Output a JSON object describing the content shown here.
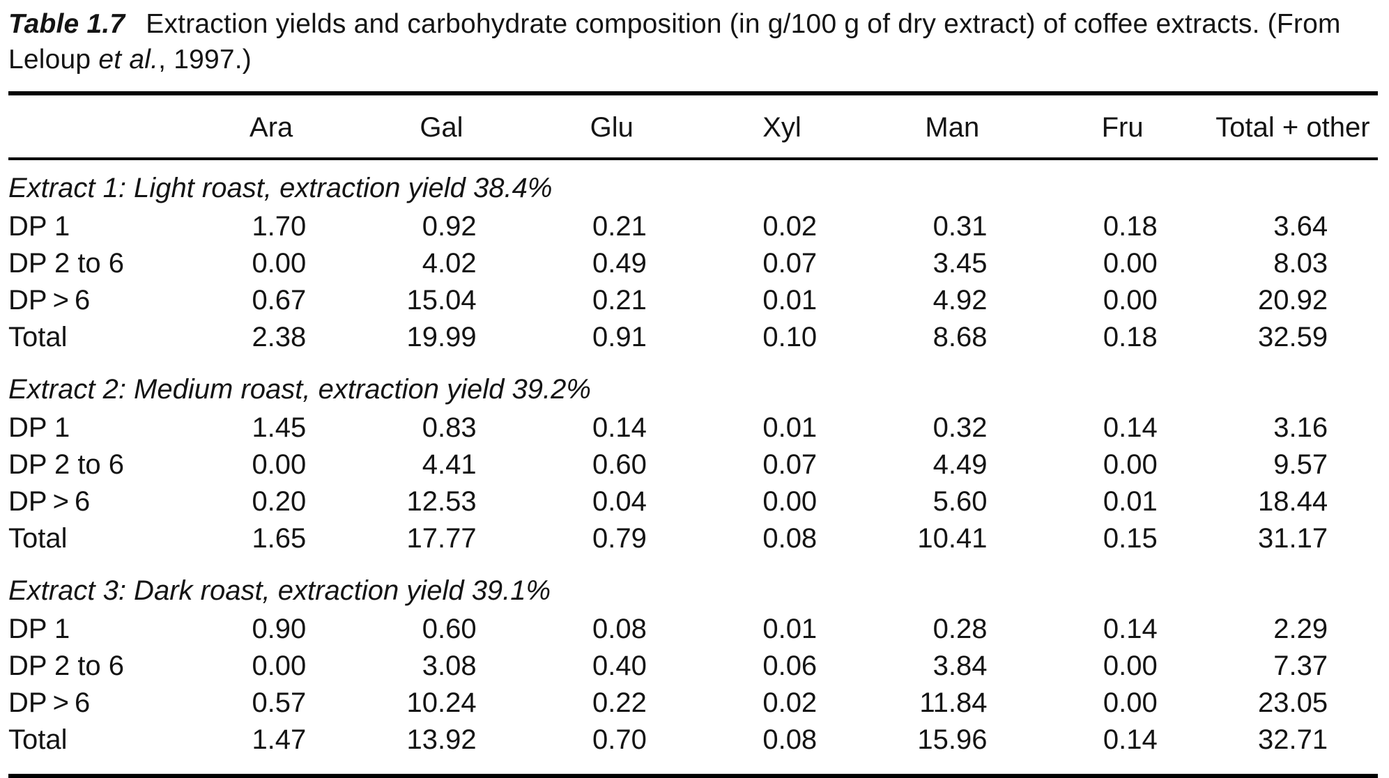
{
  "caption": {
    "label": "Table 1.7",
    "line1": "Extraction yields and carbohydrate composition (in g/100 g of dry extract) of coffee extracts. (From",
    "line2_pre": "Leloup ",
    "line2_italic": "et al.",
    "line2_post": ", 1997.)"
  },
  "table": {
    "columns": [
      "Ara",
      "Gal",
      "Glu",
      "Xyl",
      "Man",
      "Fru",
      "Total + other"
    ],
    "sections": [
      {
        "heading": "Extract 1: Light roast, extraction yield 38.4%",
        "rows": [
          {
            "label": "DP 1",
            "values": [
              "1.70",
              "0.92",
              "0.21",
              "0.02",
              "0.31",
              "0.18",
              "3.64"
            ]
          },
          {
            "label": "DP 2 to 6",
            "values": [
              "0.00",
              "4.02",
              "0.49",
              "0.07",
              "3.45",
              "0.00",
              "8.03"
            ]
          },
          {
            "label": "DP > 6",
            "values": [
              "0.67",
              "15.04",
              "0.21",
              "0.01",
              "4.92",
              "0.00",
              "20.92"
            ]
          },
          {
            "label": "Total",
            "values": [
              "2.38",
              "19.99",
              "0.91",
              "0.10",
              "8.68",
              "0.18",
              "32.59"
            ]
          }
        ]
      },
      {
        "heading": "Extract 2: Medium roast, extraction yield 39.2%",
        "rows": [
          {
            "label": "DP 1",
            "values": [
              "1.45",
              "0.83",
              "0.14",
              "0.01",
              "0.32",
              "0.14",
              "3.16"
            ]
          },
          {
            "label": "DP 2 to 6",
            "values": [
              "0.00",
              "4.41",
              "0.60",
              "0.07",
              "4.49",
              "0.00",
              "9.57"
            ]
          },
          {
            "label": "DP > 6",
            "values": [
              "0.20",
              "12.53",
              "0.04",
              "0.00",
              "5.60",
              "0.01",
              "18.44"
            ]
          },
          {
            "label": "Total",
            "values": [
              "1.65",
              "17.77",
              "0.79",
              "0.08",
              "10.41",
              "0.15",
              "31.17"
            ]
          }
        ]
      },
      {
        "heading": "Extract 3: Dark roast, extraction yield 39.1%",
        "rows": [
          {
            "label": "DP 1",
            "values": [
              "0.90",
              "0.60",
              "0.08",
              "0.01",
              "0.28",
              "0.14",
              "2.29"
            ]
          },
          {
            "label": "DP 2 to 6",
            "values": [
              "0.00",
              "3.08",
              "0.40",
              "0.06",
              "3.84",
              "0.00",
              "7.37"
            ]
          },
          {
            "label": "DP > 6",
            "values": [
              "0.57",
              "10.24",
              "0.22",
              "0.02",
              "11.84",
              "0.00",
              "23.05"
            ]
          },
          {
            "label": "Total",
            "values": [
              "1.47",
              "13.92",
              "0.70",
              "0.08",
              "15.96",
              "0.14",
              "32.71"
            ]
          }
        ]
      }
    ]
  }
}
